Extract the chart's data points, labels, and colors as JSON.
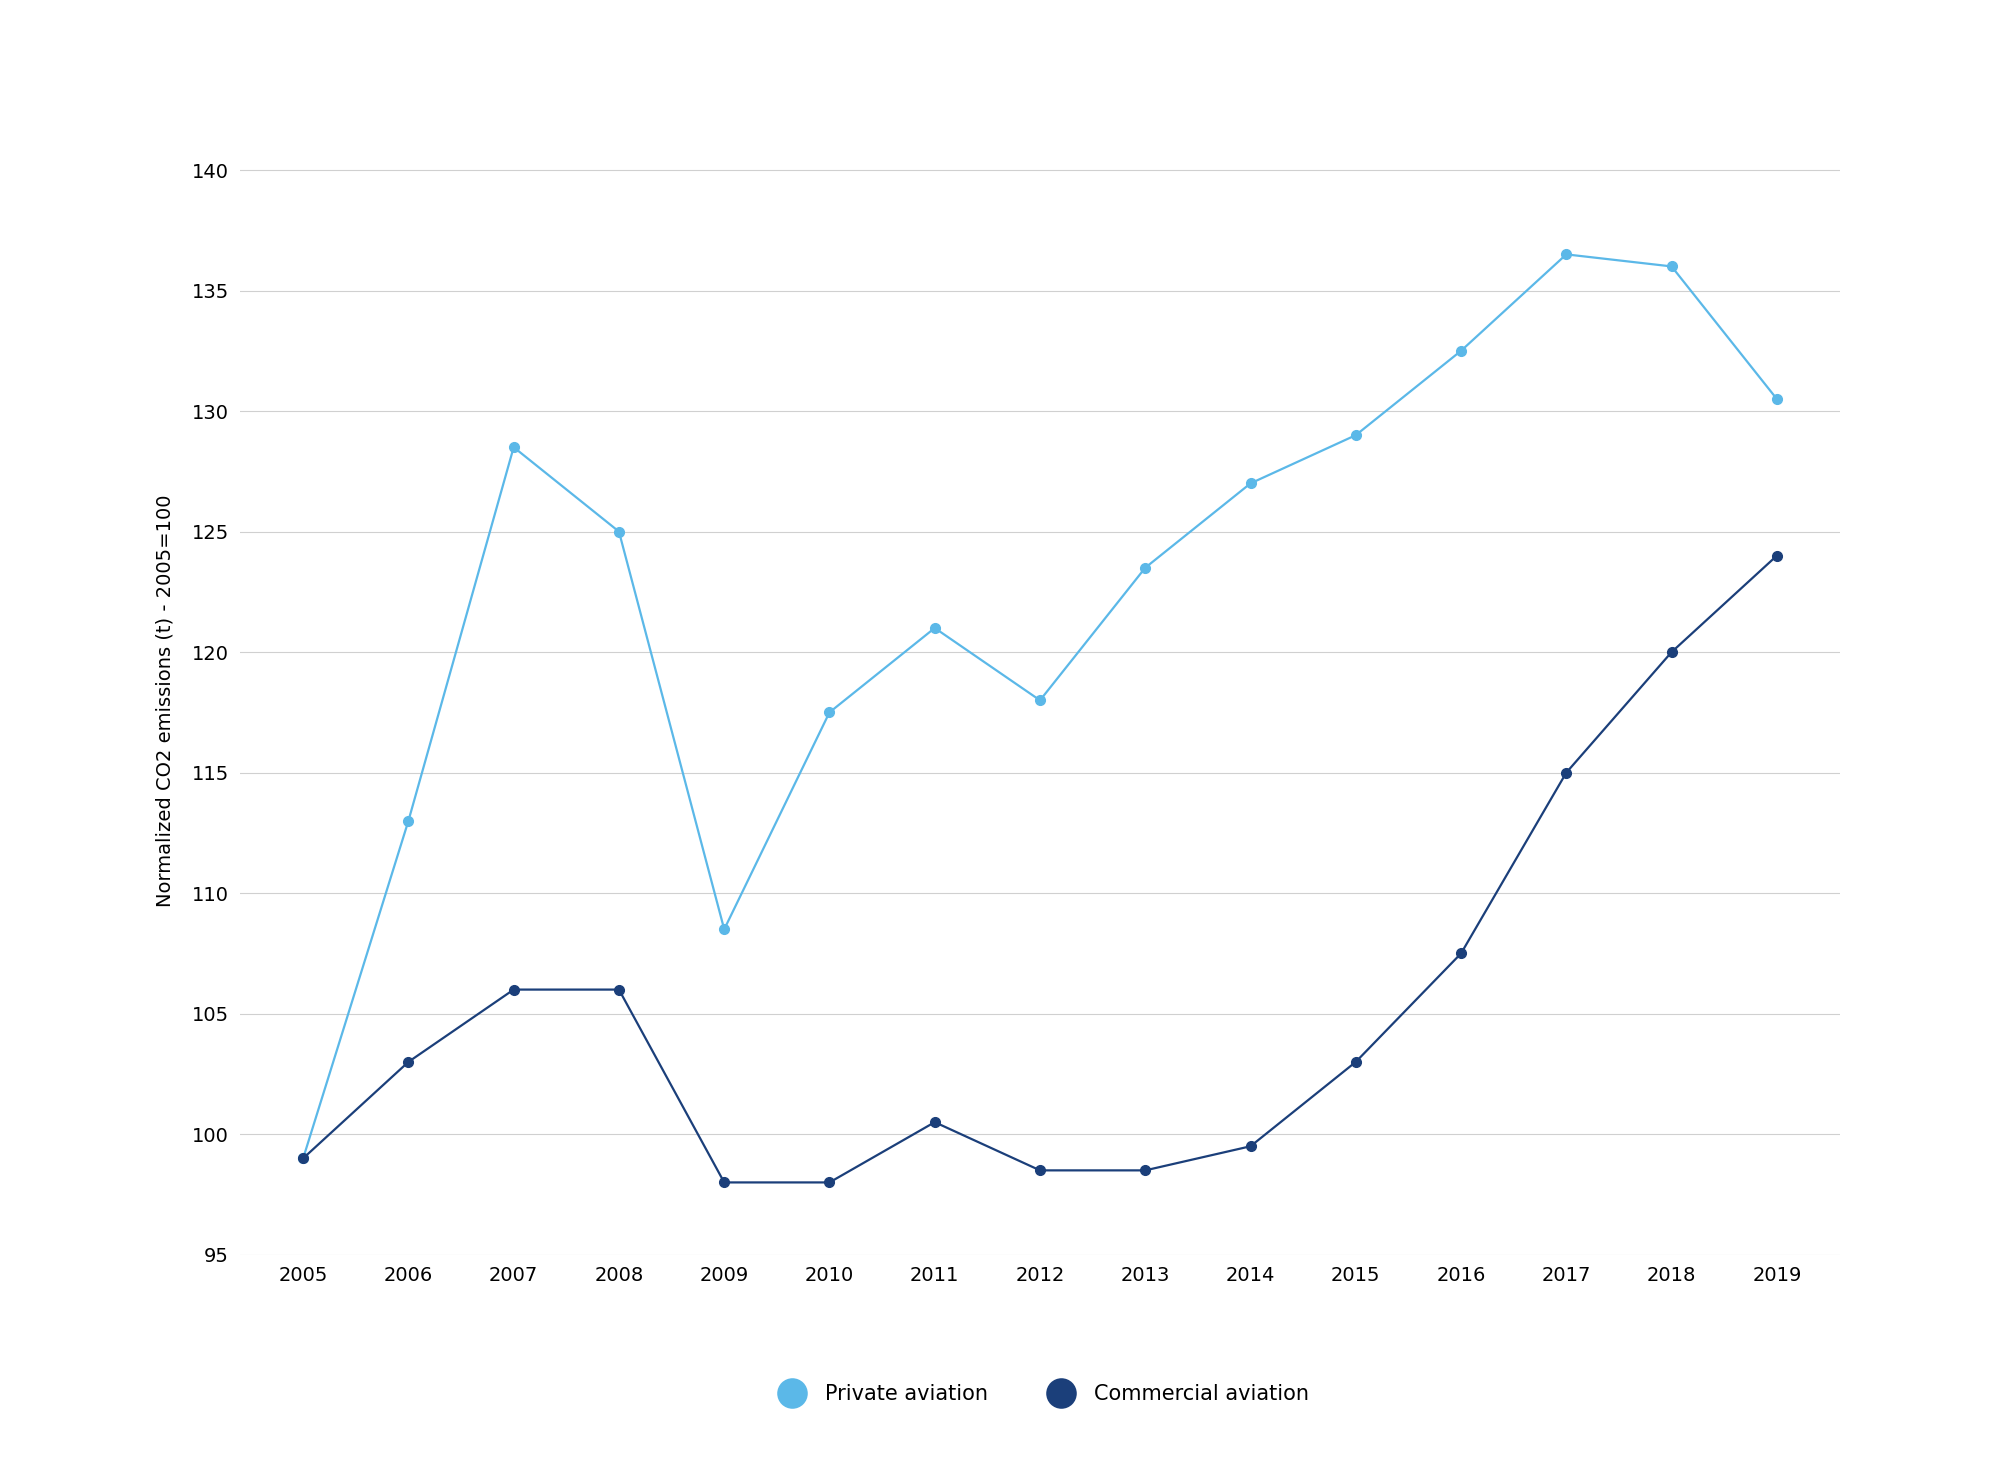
{
  "years": [
    2005,
    2006,
    2007,
    2008,
    2009,
    2010,
    2011,
    2012,
    2013,
    2014,
    2015,
    2016,
    2017,
    2018,
    2019
  ],
  "private_aviation": [
    99.0,
    113.0,
    128.5,
    125.0,
    108.5,
    117.5,
    121.0,
    118.0,
    123.5,
    127.0,
    129.0,
    132.5,
    136.5,
    136.0,
    130.5
  ],
  "commercial_aviation": [
    99.0,
    103.0,
    106.0,
    106.0,
    98.0,
    98.0,
    100.5,
    98.5,
    98.5,
    99.5,
    103.0,
    107.5,
    115.0,
    120.0,
    124.0
  ],
  "private_color": "#5BB8E8",
  "commercial_color": "#1B3F7A",
  "ylabel": "Normalized CO2 emissions (t) - 2005=100",
  "ylim": [
    95,
    141
  ],
  "yticks": [
    95,
    100,
    105,
    110,
    115,
    120,
    125,
    130,
    135,
    140
  ],
  "legend_private": "Private aviation",
  "legend_commercial": "Commercial aviation",
  "background_color": "#ffffff",
  "grid_color": "#d0d0d0",
  "marker_size": 7,
  "line_width": 1.6,
  "tick_fontsize": 14,
  "ylabel_fontsize": 14,
  "legend_fontsize": 15
}
